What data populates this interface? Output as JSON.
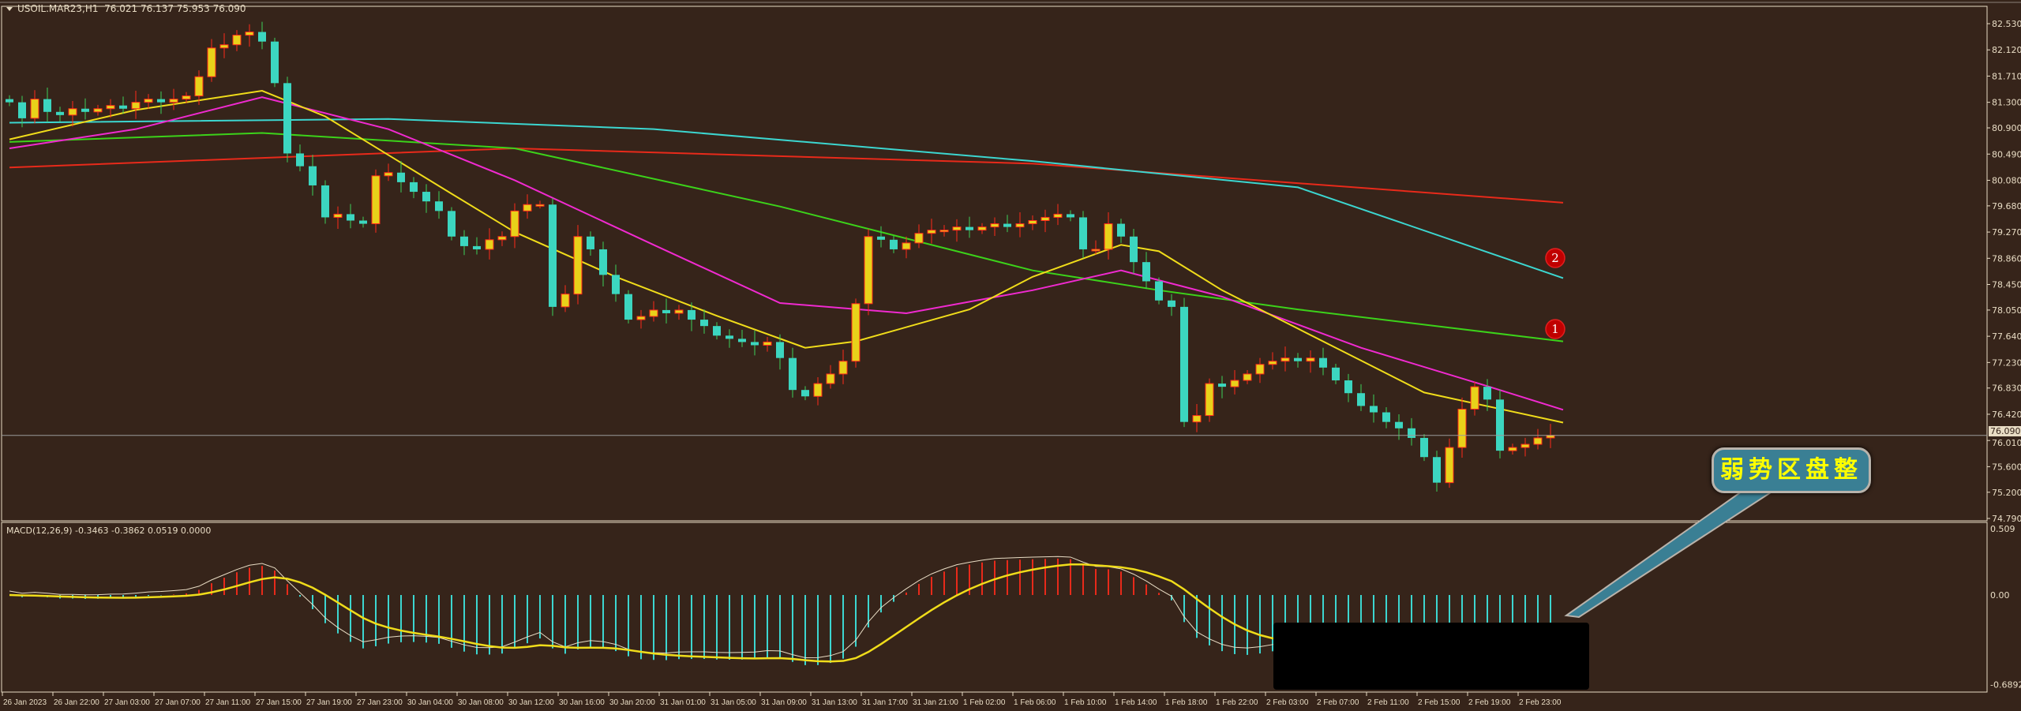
{
  "header": {
    "symbol": "USOIL.MAR23,H1",
    "ohlc": "76.021 76.137 75.953 76.090"
  },
  "macd": {
    "label": "MACD(12,26,9) -0.3463 -0.3862 0.0519 0.0000",
    "axis": [
      "0.509",
      "0.00",
      "-0.6892"
    ]
  },
  "price_axis": [
    "82.530",
    "82.120",
    "81.710",
    "81.300",
    "80.900",
    "80.490",
    "80.080",
    "79.680",
    "79.270",
    "78.860",
    "78.450",
    "78.050",
    "77.640",
    "77.230",
    "76.830",
    "76.420",
    "76.010",
    "75.600",
    "75.200",
    "74.790"
  ],
  "current_price": "76.090",
  "time_axis": [
    "26 Jan 2023",
    "26 Jan 22:00",
    "27 Jan 03:00",
    "27 Jan 07:00",
    "27 Jan 11:00",
    "27 Jan 15:00",
    "27 Jan 19:00",
    "27 Jan 23:00",
    "30 Jan 04:00",
    "30 Jan 08:00",
    "30 Jan 12:00",
    "30 Jan 16:00",
    "30 Jan 20:00",
    "31 Jan 01:00",
    "31 Jan 05:00",
    "31 Jan 09:00",
    "31 Jan 13:00",
    "31 Jan 17:00",
    "31 Jan 21:00",
    "1 Feb 02:00",
    "1 Feb 06:00",
    "1 Feb 10:00",
    "1 Feb 14:00",
    "1 Feb 18:00",
    "1 Feb 22:00",
    "2 Feb 03:00",
    "2 Feb 07:00",
    "2 Feb 11:00",
    "2 Feb 15:00",
    "2 Feb 19:00",
    "2 Feb 23:00"
  ],
  "markers": [
    "2",
    "1"
  ],
  "callout": "弱势区盘整",
  "colors": {
    "bg": "#36241a",
    "up": "#e8d21a",
    "up_border": "#ff2a1a",
    "down": "#3cd6c0",
    "down_wick": "#3ccf5a",
    "ma_fast": "#f0dc1a",
    "ma_mid": "#f02ad0",
    "ma_slow": "#3cd21a",
    "ma_long": "#3cd6d0",
    "ma_very_long": "#e82a1a"
  },
  "chart_data": {
    "type": "candlestick",
    "price_range": [
      74.79,
      82.53
    ],
    "macd_range": [
      -0.6892,
      0.509
    ],
    "closes": [
      81.3,
      81.05,
      81.35,
      81.15,
      81.1,
      81.2,
      81.15,
      81.2,
      81.25,
      81.2,
      81.3,
      81.35,
      81.3,
      81.35,
      81.4,
      81.7,
      82.15,
      82.2,
      82.35,
      82.4,
      82.25,
      81.6,
      80.5,
      80.3,
      80.0,
      79.5,
      79.55,
      79.45,
      79.4,
      80.15,
      80.2,
      80.05,
      79.9,
      79.75,
      79.6,
      79.2,
      79.05,
      79.0,
      79.15,
      79.2,
      79.6,
      79.7,
      79.7,
      78.1,
      78.3,
      79.2,
      79.0,
      78.6,
      78.3,
      77.9,
      77.95,
      78.05,
      78.0,
      78.05,
      77.9,
      77.8,
      77.65,
      77.6,
      77.55,
      77.5,
      77.55,
      77.3,
      76.8,
      76.7,
      76.9,
      77.05,
      77.25,
      78.15,
      79.2,
      79.15,
      79.0,
      79.1,
      79.25,
      79.3,
      79.3,
      79.35,
      79.3,
      79.35,
      79.4,
      79.35,
      79.4,
      79.45,
      79.5,
      79.55,
      79.5,
      79.0,
      79.0,
      79.4,
      79.2,
      78.8,
      78.5,
      78.2,
      78.1,
      76.3,
      76.4,
      76.9,
      76.85,
      76.95,
      77.05,
      77.2,
      77.25,
      77.3,
      77.25,
      77.3,
      77.15,
      76.95,
      76.75,
      76.55,
      76.45,
      76.3,
      76.2,
      76.05,
      75.75,
      75.35,
      75.9,
      76.5,
      76.85,
      76.65,
      75.85,
      75.9,
      75.95,
      76.05,
      76.09
    ],
    "moving_averages": [
      {
        "name": "ma-very-long",
        "color": "#e82a1a",
        "points": [
          [
            0,
            80.28
          ],
          [
            40,
            80.58
          ],
          [
            81,
            80.34
          ],
          [
            123,
            79.73
          ]
        ]
      },
      {
        "name": "ma-long",
        "color": "#3cd6d0",
        "points": [
          [
            0,
            80.98
          ],
          [
            30,
            81.04
          ],
          [
            51,
            80.88
          ],
          [
            81,
            80.38
          ],
          [
            102,
            79.97
          ],
          [
            123,
            78.55
          ]
        ]
      },
      {
        "name": "ma-slow",
        "color": "#3cd21a",
        "points": [
          [
            0,
            80.68
          ],
          [
            20,
            80.82
          ],
          [
            40,
            80.58
          ],
          [
            61,
            79.67
          ],
          [
            81,
            78.67
          ],
          [
            91,
            78.36
          ],
          [
            102,
            78.06
          ],
          [
            123,
            77.56
          ]
        ]
      },
      {
        "name": "ma-mid",
        "color": "#f02ad0",
        "points": [
          [
            0,
            80.58
          ],
          [
            10,
            80.88
          ],
          [
            20,
            81.38
          ],
          [
            30,
            80.88
          ],
          [
            40,
            80.08
          ],
          [
            51,
            79.07
          ],
          [
            61,
            78.16
          ],
          [
            71,
            78.0
          ],
          [
            81,
            78.36
          ],
          [
            88,
            78.67
          ],
          [
            96,
            78.26
          ],
          [
            107,
            77.46
          ],
          [
            117,
            76.86
          ],
          [
            123,
            76.49
          ]
        ]
      },
      {
        "name": "ma-fast",
        "color": "#f0dc1a",
        "points": [
          [
            0,
            80.72
          ],
          [
            10,
            81.18
          ],
          [
            20,
            81.48
          ],
          [
            25,
            81.08
          ],
          [
            35,
            79.87
          ],
          [
            40,
            79.27
          ],
          [
            48,
            78.57
          ],
          [
            56,
            77.96
          ],
          [
            63,
            77.46
          ],
          [
            67,
            77.56
          ],
          [
            76,
            78.06
          ],
          [
            81,
            78.57
          ],
          [
            88,
            79.07
          ],
          [
            91,
            78.97
          ],
          [
            96,
            78.36
          ],
          [
            102,
            77.76
          ],
          [
            107,
            77.26
          ],
          [
            112,
            76.76
          ],
          [
            123,
            76.29
          ]
        ]
      }
    ]
  }
}
